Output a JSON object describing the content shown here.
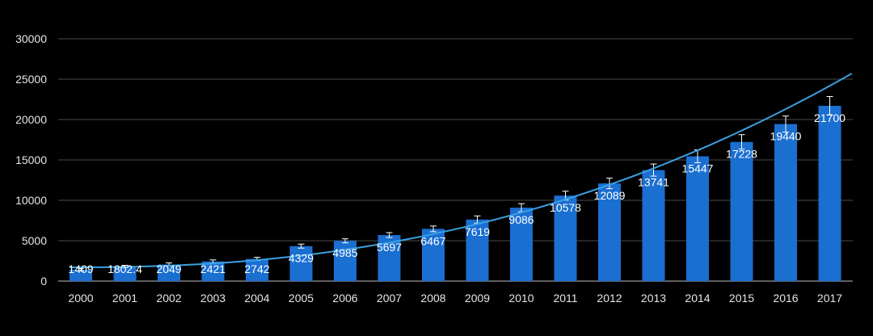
{
  "chart_data": {
    "type": "bar",
    "categories": [
      "2000",
      "2001",
      "2002",
      "2003",
      "2004",
      "2005",
      "2006",
      "2007",
      "2008",
      "2009",
      "2010",
      "2011",
      "2012",
      "2013",
      "2014",
      "2015",
      "2016",
      "2017"
    ],
    "series": [
      {
        "values": [
          1409,
          1802.4,
          2049,
          2421,
          2742,
          4329,
          4985,
          5697,
          6467,
          7619,
          9086,
          10578,
          12089,
          13741,
          15447,
          17228,
          19440,
          21700
        ],
        "labels": [
          "1409",
          "1802.4",
          "2049",
          "2421",
          "2742",
          "4329",
          "4985",
          "5697",
          "6467",
          "7619",
          "9086",
          "10578",
          "12089",
          "13741",
          "15447",
          "17228",
          "19440",
          "21700"
        ],
        "error": [
          150,
          150,
          200,
          200,
          200,
          250,
          250,
          300,
          350,
          450,
          500,
          550,
          650,
          750,
          800,
          900,
          1000,
          1150
        ]
      }
    ],
    "trendline": {
      "type": "polynomial",
      "start_value": 1700,
      "end_value": 25700
    },
    "yticks": [
      "0",
      "5000",
      "10000",
      "15000",
      "20000",
      "25000",
      "30000"
    ],
    "ylim": [
      0,
      30000
    ],
    "grid": true,
    "colors": {
      "bar": "#1a6fd1",
      "trend": "#3aa0e0",
      "grid": "#4a4a4a",
      "background": "#000000",
      "text": "#e6e6e6"
    }
  }
}
